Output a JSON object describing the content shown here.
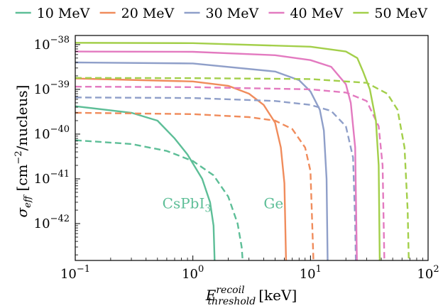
{
  "chart_data": {
    "type": "line",
    "xlabel": {
      "main": "E",
      "sup": "recoil",
      "sub": "threshold",
      "unit": "[keV]"
    },
    "ylabel": {
      "main": "σ",
      "sub": "eff",
      "unit_pre": "[cm",
      "unit_exp": "−2",
      "unit_post": "/nucleus]"
    },
    "xscale": "log",
    "yscale": "log",
    "xlim": [
      0.1,
      100
    ],
    "ylim": [
      1.5e-43,
      1.6e-38
    ],
    "grid": false,
    "legend_position": "top",
    "x_ticks": [
      {
        "value": 0.1,
        "base": "10",
        "exp": "−1"
      },
      {
        "value": 1,
        "base": "10",
        "exp": "0"
      },
      {
        "value": 10,
        "base": "10",
        "exp": "1"
      },
      {
        "value": 100,
        "base": "10",
        "exp": "2"
      }
    ],
    "y_ticks": [
      {
        "value": 1e-42,
        "base": "10",
        "exp": "−42"
      },
      {
        "value": 1e-41,
        "base": "10",
        "exp": "−41"
      },
      {
        "value": 1e-40,
        "base": "10",
        "exp": "−40"
      },
      {
        "value": 1e-39,
        "base": "10",
        "exp": "−39"
      },
      {
        "value": 1e-38,
        "base": "10",
        "exp": "−38"
      }
    ],
    "legend": [
      {
        "label": "10 MeV",
        "color": "#5dbe97"
      },
      {
        "label": "20 MeV",
        "color": "#f08c5c"
      },
      {
        "label": "30 MeV",
        "color": "#8f9fc9"
      },
      {
        "label": "40 MeV",
        "color": "#e37ac0"
      },
      {
        "label": "50 MeV",
        "color": "#a3cf4a"
      }
    ],
    "annotations": [
      {
        "text": "CsPbI",
        "sub": "3",
        "color": "#5dbe97",
        "x": 0.55,
        "y": 2.2e-42
      },
      {
        "text": "Ge",
        "color": "#5dbe97",
        "x": 4.0,
        "y": 2.2e-42
      }
    ],
    "series": [
      {
        "material": "CsPbI3",
        "energy": "10 MeV",
        "style": "solid",
        "color": "#5dbe97",
        "points": [
          [
            0.1,
            4.2e-40
          ],
          [
            0.3,
            3e-40
          ],
          [
            0.5,
            2e-40
          ],
          [
            0.7,
            8e-41
          ],
          [
            0.9,
            3.5e-41
          ],
          [
            1.2,
            1e-41
          ],
          [
            1.4,
            3e-42
          ],
          [
            1.5,
            9e-43
          ],
          [
            1.53,
            1.5e-43
          ]
        ]
      },
      {
        "material": "Ge",
        "energy": "10 MeV",
        "style": "dashed",
        "color": "#5dbe97",
        "points": [
          [
            0.1,
            7.3e-41
          ],
          [
            0.3,
            6e-41
          ],
          [
            0.6,
            4.2e-41
          ],
          [
            1.0,
            2.5e-41
          ],
          [
            1.5,
            1.2e-41
          ],
          [
            2.0,
            4e-42
          ],
          [
            2.4,
            1e-42
          ],
          [
            2.6,
            3e-43
          ],
          [
            2.65,
            1.5e-43
          ]
        ]
      },
      {
        "material": "CsPbI3",
        "energy": "20 MeV",
        "style": "solid",
        "color": "#f08c5c",
        "points": [
          [
            0.1,
            1.75e-39
          ],
          [
            1.0,
            1.5e-39
          ],
          [
            2.0,
            1.2e-39
          ],
          [
            3.0,
            8e-40
          ],
          [
            4.0,
            4.5e-40
          ],
          [
            5.0,
            1.8e-40
          ],
          [
            5.6,
            5e-41
          ],
          [
            6.0,
            8e-42
          ],
          [
            6.2,
            1.5e-43
          ]
        ]
      },
      {
        "material": "Ge",
        "energy": "20 MeV",
        "style": "dashed",
        "color": "#f08c5c",
        "points": [
          [
            0.1,
            3e-40
          ],
          [
            1.0,
            2.8e-40
          ],
          [
            3.0,
            2.4e-40
          ],
          [
            5.0,
            2e-40
          ],
          [
            7.0,
            1.3e-40
          ],
          [
            9.0,
            5e-41
          ],
          [
            10.0,
            1.5e-41
          ],
          [
            10.6,
            1.5e-43
          ]
        ]
      },
      {
        "material": "CsPbI3",
        "energy": "30 MeV",
        "style": "solid",
        "color": "#8f9fc9",
        "points": [
          [
            0.1,
            4e-39
          ],
          [
            1.0,
            3.8e-39
          ],
          [
            5.0,
            2.5e-39
          ],
          [
            8.0,
            1.6e-39
          ],
          [
            10.0,
            9e-40
          ],
          [
            12.0,
            3.5e-40
          ],
          [
            13.0,
            1.2e-40
          ],
          [
            13.7,
            1e-41
          ],
          [
            14.0,
            1.5e-43
          ]
        ]
      },
      {
        "material": "Ge",
        "energy": "30 MeV",
        "style": "dashed",
        "color": "#8f9fc9",
        "points": [
          [
            0.1,
            6.6e-40
          ],
          [
            1.0,
            6.4e-40
          ],
          [
            5.0,
            5.5e-40
          ],
          [
            10.0,
            4.5e-40
          ],
          [
            15.0,
            3.3e-40
          ],
          [
            20.0,
            1.5e-40
          ],
          [
            23.0,
            3e-41
          ],
          [
            24.0,
            1e-42
          ],
          [
            24.3,
            1.5e-43
          ]
        ]
      },
      {
        "material": "CsPbI3",
        "energy": "40 MeV",
        "style": "solid",
        "color": "#e37ac0",
        "points": [
          [
            0.1,
            7e-39
          ],
          [
            1.0,
            6.9e-39
          ],
          [
            5.0,
            5.8e-39
          ],
          [
            10.0,
            4.5e-39
          ],
          [
            15.0,
            3.2e-39
          ],
          [
            20.0,
            1.3e-39
          ],
          [
            22.0,
            5e-40
          ],
          [
            24.0,
            5e-41
          ],
          [
            24.8,
            1.5e-43
          ]
        ]
      },
      {
        "material": "Ge",
        "energy": "40 MeV",
        "style": "dashed",
        "color": "#e37ac0",
        "points": [
          [
            0.1,
            1.15e-39
          ],
          [
            1.0,
            1.12e-39
          ],
          [
            10.0,
            1e-39
          ],
          [
            20.0,
            8.5e-40
          ],
          [
            30.0,
            5.5e-40
          ],
          [
            38.0,
            1.5e-40
          ],
          [
            41.0,
            2e-41
          ],
          [
            42.5,
            1.5e-43
          ]
        ]
      },
      {
        "material": "CsPbI3",
        "energy": "50 MeV",
        "style": "solid",
        "color": "#a3cf4a",
        "points": [
          [
            0.1,
            1.1e-38
          ],
          [
            1.0,
            1.08e-38
          ],
          [
            10.0,
            9e-39
          ],
          [
            20.0,
            7e-39
          ],
          [
            25.0,
            5e-39
          ],
          [
            28.0,
            2.5e-39
          ],
          [
            32.0,
            1e-39
          ],
          [
            36.0,
            2e-40
          ],
          [
            38.0,
            2e-41
          ],
          [
            38.8,
            1.5e-43
          ]
        ]
      },
      {
        "material": "Ge",
        "energy": "50 MeV",
        "style": "dashed",
        "color": "#a3cf4a",
        "points": [
          [
            0.1,
            1.8e-39
          ],
          [
            1.0,
            1.78e-39
          ],
          [
            10.0,
            1.7e-39
          ],
          [
            30.0,
            1.4e-39
          ],
          [
            45.0,
            8e-40
          ],
          [
            55.0,
            3.5e-40
          ],
          [
            63.0,
            5e-41
          ],
          [
            67.0,
            2e-42
          ],
          [
            68.5,
            1.5e-43
          ]
        ]
      }
    ]
  }
}
